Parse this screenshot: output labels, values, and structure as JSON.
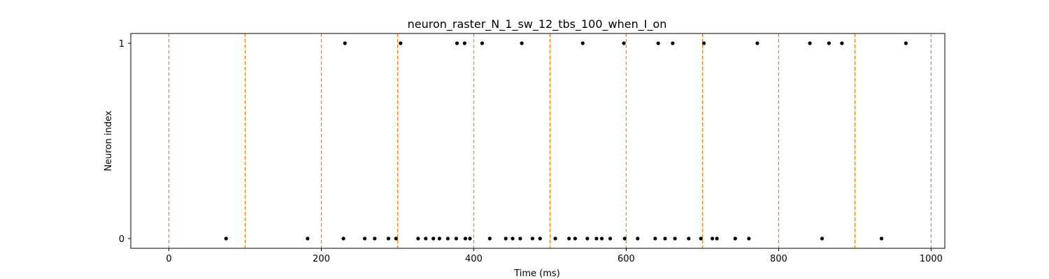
{
  "chart_data": {
    "type": "scatter",
    "title": "neuron_raster_N_1_sw_12_tbs_100_when_I_on",
    "xlabel": "Time (ms)",
    "ylabel": "Neuron index",
    "xlim": [
      -50,
      1018
    ],
    "ylim": [
      -0.05,
      1.05
    ],
    "x_ticks": [
      0,
      200,
      400,
      600,
      800,
      1000
    ],
    "y_ticks": [
      0,
      1
    ],
    "grid": false,
    "marker_color": "#000000",
    "vline_color": "#ff7f0e",
    "vlines": [
      0,
      100,
      200,
      300,
      400,
      500,
      600,
      700,
      800,
      900,
      1000
    ],
    "series": [
      {
        "neuron": 0,
        "x": [
          75,
          182,
          229,
          257,
          270,
          288,
          298,
          327,
          337,
          347,
          355,
          366,
          377,
          389,
          395,
          421,
          442,
          451,
          461,
          477,
          487,
          507,
          525,
          533,
          549,
          561,
          568,
          579,
          598,
          615,
          638,
          651,
          664,
          682,
          698,
          713,
          719,
          743,
          761,
          857,
          935
        ]
      },
      {
        "neuron": 1,
        "x": [
          231,
          304,
          378,
          388,
          411,
          463,
          543,
          597,
          642,
          661,
          702,
          772,
          841,
          866,
          883,
          967
        ]
      }
    ]
  }
}
